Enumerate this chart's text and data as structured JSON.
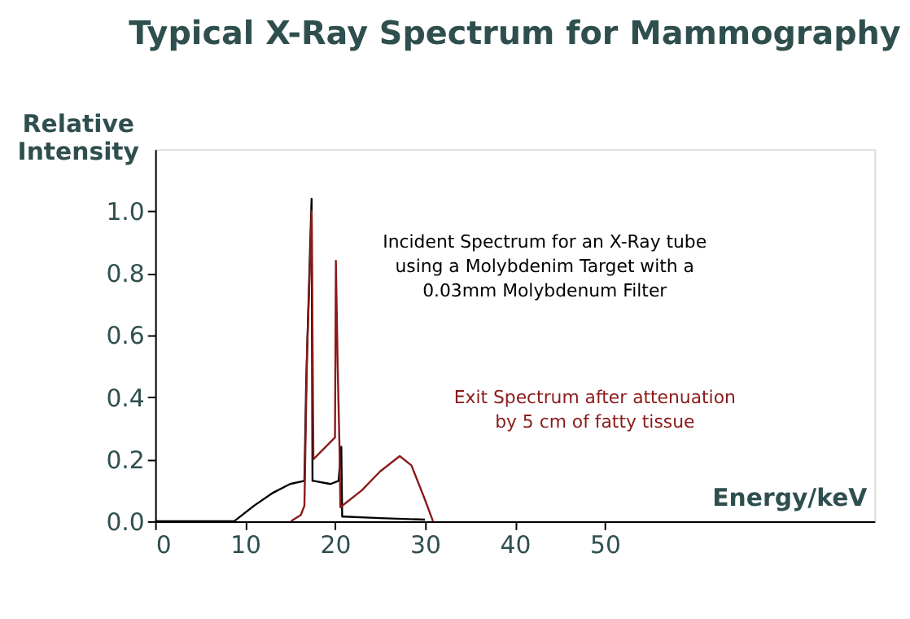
{
  "chart_data": {
    "type": "line",
    "title": "Typical X-Ray Spectrum for Mammography",
    "xlabel": "Energy/keV",
    "ylabel": "Relative\nIntensity",
    "xlim": [
      0,
      80
    ],
    "ylim": [
      0,
      1.2
    ],
    "xticks": [
      0,
      10,
      20,
      30,
      40,
      50
    ],
    "yticks": [
      {
        "value": 0,
        "label": "0.0"
      },
      0.2,
      0.4,
      0.6,
      0.8,
      {
        "value": 1,
        "label": "1.0"
      }
    ],
    "grid": false,
    "marker": "none",
    "line_style": "solid",
    "series": [
      {
        "color": "#000000",
        "x": [
          0,
          8.8,
          11,
          13,
          15,
          16.6,
          16.8,
          17.2,
          17.4,
          17.5,
          17.6,
          19.5,
          20.4,
          20.7,
          20.8,
          21.0,
          25,
          30
        ],
        "values": [
          0,
          0,
          0.05,
          0.09,
          0.12,
          0.13,
          0.45,
          0.85,
          1.04,
          0.13,
          0.13,
          0.12,
          0.13,
          0.24,
          0.015,
          0.015,
          0.01,
          0.005
        ]
      },
      {
        "color": "#8b1a1a",
        "x": [
          15.1,
          16.2,
          16.6,
          16.9,
          17.3,
          17.4,
          17.6,
          20.0,
          20.1,
          20.3,
          20.5,
          20.6,
          23,
          25,
          27.2,
          28.5,
          30,
          30.9
        ],
        "values": [
          0,
          0.02,
          0.05,
          0.55,
          0.9,
          1.0,
          0.2,
          0.27,
          0.84,
          0.5,
          0.24,
          0.045,
          0.1,
          0.16,
          0.21,
          0.18,
          0.07,
          0
        ]
      }
    ],
    "annotations": [
      "Incident Spectrum for an X-Ray tube\nusing a Molybdenim Target with a\n0.03mm Molybdenum Filter",
      "Exit Spectrum after attenuation\nby 5 cm of fatty tissue"
    ]
  }
}
